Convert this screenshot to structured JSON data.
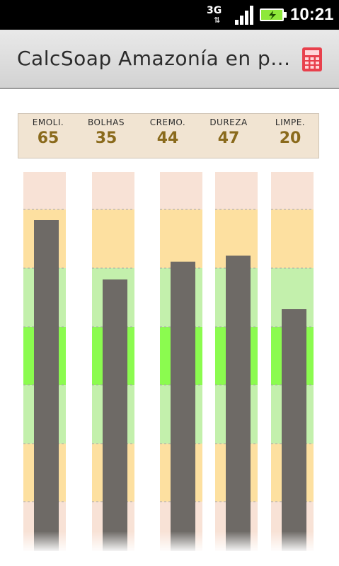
{
  "status_bar": {
    "network": "3G",
    "time": "10:21",
    "icons": [
      "network-3g-icon",
      "signal-icon",
      "battery-charging-icon"
    ]
  },
  "app_bar": {
    "title": "CalcSoap Amazonía en p...",
    "action_icon": "calculator-icon",
    "action_color": "#e8404c"
  },
  "properties": [
    {
      "label": "EMOLI.",
      "value": "65"
    },
    {
      "label": "BOLHAS",
      "value": "35"
    },
    {
      "label": "CREMO.",
      "value": "44"
    },
    {
      "label": "DUREZA",
      "value": "47"
    },
    {
      "label": "LIMPE.",
      "value": "20"
    }
  ],
  "chart_data": {
    "type": "bar",
    "categories": [
      "EMOLI.",
      "BOLHAS",
      "CREMO.",
      "DUREZA",
      "LIMPE."
    ],
    "values": [
      65,
      35,
      44,
      47,
      20
    ],
    "bar_color": "#6e6a66",
    "zone_colors": {
      "outer": "#f8e2d6",
      "warning": "#fde0a0",
      "good": "#c3f0ac",
      "ideal": "#8bfb4f"
    }
  }
}
